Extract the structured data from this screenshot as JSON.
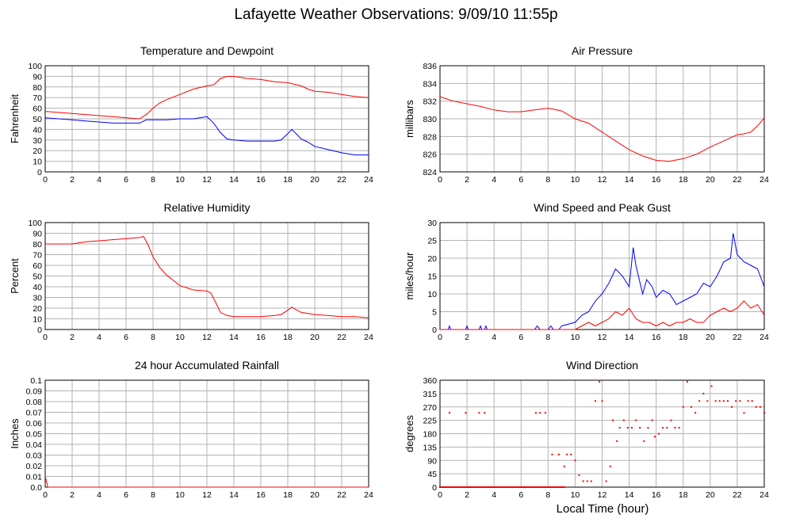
{
  "title": "Lafayette Weather Observations: 9/09/10 11:55p",
  "xlabel": "Local Time (hour)",
  "colors": {
    "red": "#ff0000",
    "blue": "#0000ff",
    "grid": "#b3b3b3",
    "axis": "#000000"
  },
  "chart_data": [
    {
      "id": "temp",
      "type": "line",
      "title": "Temperature and Dewpoint",
      "ylabel": "Fahrenheit",
      "xlim": [
        0,
        24
      ],
      "ylim": [
        0,
        100
      ],
      "xticks": [
        0,
        2,
        4,
        6,
        8,
        10,
        12,
        14,
        16,
        18,
        20,
        22,
        24
      ],
      "yticks": [
        0,
        10,
        20,
        30,
        40,
        50,
        60,
        70,
        80,
        90,
        100
      ],
      "grid": true,
      "series": [
        {
          "color": "#ff0000",
          "x": [
            0,
            1,
            2,
            3,
            4,
            5,
            6,
            7,
            7.5,
            8,
            8.5,
            9,
            10,
            11,
            12,
            12.5,
            13,
            13.5,
            14,
            15,
            16,
            17,
            18,
            19,
            19.5,
            20,
            21,
            22,
            23,
            24
          ],
          "y": [
            57,
            56,
            55,
            54,
            53,
            52,
            51,
            50,
            54,
            60,
            65,
            68,
            73,
            78,
            81,
            82,
            88,
            90,
            90,
            88,
            87,
            85,
            84,
            81,
            78,
            76,
            75,
            73,
            71,
            70
          ]
        },
        {
          "color": "#0000ff",
          "x": [
            0,
            1,
            2,
            3,
            4,
            5,
            6,
            7,
            7.5,
            8,
            9,
            10,
            11,
            12,
            12.5,
            13,
            13.5,
            14,
            15,
            16,
            17,
            17.5,
            18,
            18.3,
            18.7,
            19,
            19.5,
            20,
            21,
            22,
            23,
            24
          ],
          "y": [
            51,
            50,
            49,
            48,
            47,
            46,
            46,
            46,
            49,
            49,
            49,
            50,
            50,
            52,
            46,
            37,
            31,
            30,
            29,
            29,
            29,
            30,
            36,
            40,
            35,
            31,
            28,
            24,
            21,
            18,
            16,
            16
          ]
        }
      ]
    },
    {
      "id": "pressure",
      "type": "line",
      "title": "Air Pressure",
      "ylabel": "millibars",
      "xlim": [
        0,
        24
      ],
      "ylim": [
        824,
        836
      ],
      "xticks": [
        0,
        2,
        4,
        6,
        8,
        10,
        12,
        14,
        16,
        18,
        20,
        22,
        24
      ],
      "yticks": [
        824,
        826,
        828,
        830,
        832,
        834,
        836
      ],
      "grid": true,
      "series": [
        {
          "color": "#ff0000",
          "x": [
            0,
            1,
            2,
            3,
            4,
            5,
            6,
            7,
            8,
            9,
            10,
            11,
            12,
            13,
            14,
            15,
            16,
            17,
            18,
            19,
            20,
            21,
            22,
            22.5,
            23,
            23.5,
            24
          ],
          "y": [
            832.5,
            832,
            831.7,
            831.4,
            831,
            830.8,
            830.8,
            831,
            831.2,
            830.9,
            830,
            829.5,
            828.5,
            827.5,
            826.5,
            825.8,
            825.3,
            825.2,
            825.5,
            826,
            826.8,
            827.5,
            828.2,
            828.3,
            828.5,
            829.2,
            830.1
          ]
        }
      ]
    },
    {
      "id": "humidity",
      "type": "line",
      "title": "Relative Humidity",
      "ylabel": "Percent",
      "xlim": [
        0,
        24
      ],
      "ylim": [
        0,
        100
      ],
      "xticks": [
        0,
        2,
        4,
        6,
        8,
        10,
        12,
        14,
        16,
        18,
        20,
        22,
        24
      ],
      "yticks": [
        0,
        10,
        20,
        30,
        40,
        50,
        60,
        70,
        80,
        90,
        100
      ],
      "grid": true,
      "series": [
        {
          "color": "#ff0000",
          "x": [
            0,
            1,
            2,
            3,
            4,
            5,
            6,
            7,
            7.3,
            7.6,
            8,
            8.5,
            9,
            9.5,
            10,
            11,
            12,
            12.3,
            12.7,
            13,
            13.5,
            14,
            15,
            16,
            17,
            17.5,
            18,
            18.3,
            18.7,
            19,
            20,
            21,
            22,
            23,
            24
          ],
          "y": [
            80,
            80,
            80,
            82,
            83,
            84,
            85,
            86,
            87,
            80,
            68,
            58,
            51,
            46,
            41,
            37,
            36,
            34,
            24,
            16,
            13,
            12,
            12,
            12,
            13,
            14,
            18,
            21,
            18,
            16,
            14,
            13,
            12,
            12,
            11
          ]
        }
      ]
    },
    {
      "id": "wind",
      "type": "line",
      "title": "Wind Speed and Peak Gust",
      "ylabel": "miles/hour",
      "xlim": [
        0,
        24
      ],
      "ylim": [
        0,
        30
      ],
      "xticks": [
        0,
        2,
        4,
        6,
        8,
        10,
        12,
        14,
        16,
        18,
        20,
        22,
        24
      ],
      "yticks": [
        0,
        5,
        10,
        15,
        20,
        25,
        30
      ],
      "grid": true,
      "series": [
        {
          "color": "#0000ff",
          "x": [
            0,
            0.6,
            0.7,
            0.8,
            1.9,
            2,
            2.1,
            2.9,
            3,
            3.1,
            3.3,
            3.4,
            3.5,
            7,
            7.2,
            7.4,
            8,
            8.2,
            8.4,
            8.8,
            9,
            10,
            10.5,
            11,
            11.5,
            12,
            12.5,
            13,
            13.5,
            14,
            14.3,
            14.5,
            15,
            15.3,
            15.7,
            16,
            16.5,
            17,
            17.5,
            18,
            18.5,
            19,
            19.5,
            20,
            20.5,
            21,
            21.5,
            21.7,
            22,
            22.5,
            23,
            23.5,
            24
          ],
          "y": [
            0,
            0,
            1,
            0,
            0,
            1,
            0,
            0,
            1,
            0,
            0,
            1,
            0,
            0,
            1,
            0,
            0,
            1,
            0,
            0,
            1,
            2,
            4,
            5,
            8,
            10,
            13,
            17,
            15,
            12,
            23,
            18,
            10,
            14,
            12,
            9,
            11,
            10,
            7,
            8,
            9,
            10,
            13,
            12,
            15,
            19,
            20,
            27,
            21,
            19,
            18,
            17,
            12
          ]
        },
        {
          "color": "#ff0000",
          "x": [
            0,
            10,
            10.5,
            11,
            11.5,
            12,
            12.5,
            13,
            13.5,
            14,
            14.5,
            15,
            15.5,
            16,
            16.5,
            17,
            17.5,
            18,
            18.5,
            19,
            19.5,
            20,
            20.5,
            21,
            21.5,
            22,
            22.5,
            23,
            23.5,
            24
          ],
          "y": [
            0,
            0,
            1,
            2,
            1,
            2,
            3,
            5,
            4,
            6,
            3,
            2,
            2,
            1,
            2,
            1,
            2,
            2,
            3,
            2,
            2,
            4,
            5,
            6,
            5,
            6,
            8,
            6,
            7,
            4
          ]
        }
      ]
    },
    {
      "id": "rain",
      "type": "line",
      "title": "24 hour Accumulated Rainfall",
      "ylabel": "Inches",
      "xlim": [
        0,
        24
      ],
      "ylim": [
        0,
        0.1
      ],
      "xticks": [
        0,
        2,
        4,
        6,
        8,
        10,
        12,
        14,
        16,
        18,
        20,
        22,
        24
      ],
      "yticks": [
        0.0,
        0.01,
        0.02,
        0.03,
        0.04,
        0.05,
        0.06,
        0.07,
        0.08,
        0.09,
        0.1
      ],
      "yticklabels": [
        "0.0",
        "0.01",
        "0.02",
        "0.03",
        "0.04",
        "0.05",
        "0.06",
        "0.07",
        "0.08",
        "0.09",
        "0.1"
      ],
      "grid": true,
      "series": [
        {
          "color": "#ff0000",
          "x": [
            0,
            0.1,
            0.2,
            24
          ],
          "y": [
            0.01,
            0.005,
            0,
            0
          ]
        }
      ]
    },
    {
      "id": "direction",
      "type": "scatter",
      "title": "Wind Direction",
      "ylabel": "degrees",
      "xlim": [
        0,
        24
      ],
      "ylim": [
        0,
        360
      ],
      "xticks": [
        0,
        2,
        4,
        6,
        8,
        10,
        12,
        14,
        16,
        18,
        20,
        22,
        24
      ],
      "yticks": [
        0,
        45,
        90,
        135,
        180,
        225,
        270,
        315,
        360
      ],
      "grid": true,
      "series": [
        {
          "color": "#ff0000",
          "x": [
            0.7,
            1.9,
            2.9,
            3.3,
            7.1,
            7.4,
            7.8,
            8.3,
            8.8,
            9.2,
            9.4,
            9.7,
            10.0,
            10.3,
            10.6,
            10.9,
            11.2,
            11.5,
            11.8,
            12.0,
            12.3,
            12.6,
            12.8,
            13.1,
            13.3,
            13.6,
            13.9,
            14.2,
            14.5,
            14.8,
            15.1,
            15.4,
            15.7,
            15.9,
            16.2,
            16.5,
            16.8,
            17.1,
            17.4,
            17.7,
            18.0,
            18.3,
            18.6,
            18.9,
            19.2,
            19.5,
            19.8,
            20.1,
            20.4,
            20.7,
            21.0,
            21.3,
            21.6,
            21.9,
            22.2,
            22.5,
            22.8,
            23.1,
            23.4,
            23.7,
            24.0
          ],
          "y": [
            250,
            250,
            250,
            250,
            250,
            250,
            250,
            110,
            110,
            70,
            110,
            110,
            90,
            40,
            20,
            20,
            20,
            290,
            355,
            290,
            20,
            70,
            225,
            155,
            200,
            225,
            200,
            200,
            225,
            200,
            155,
            200,
            225,
            170,
            180,
            200,
            200,
            225,
            200,
            200,
            270,
            355,
            270,
            250,
            290,
            315,
            290,
            340,
            290,
            290,
            290,
            290,
            270,
            290,
            290,
            250,
            290,
            290,
            270,
            270,
            250
          ]
        },
        {
          "color": "#ff0000",
          "x_range": [
            0,
            9.2
          ],
          "y_value": 0
        }
      ]
    }
  ]
}
